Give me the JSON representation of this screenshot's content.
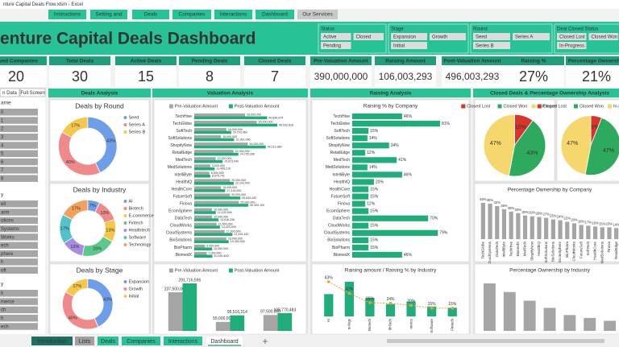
{
  "window_title": "nture Capital Deals Flow.xlsm - Excel",
  "nav": [
    "Instructions",
    "Setting and",
    "Deals",
    "Companies",
    "Interactions",
    "Dashboard",
    "Our Services"
  ],
  "title": "enture Capital Deals Dashboard",
  "slicers": [
    {
      "title": "Status",
      "items": [
        "Active",
        "Closed",
        "Pending"
      ]
    },
    {
      "title": "Stage",
      "items": [
        "Expansion",
        "Growth",
        "Initial"
      ]
    },
    {
      "title": "Round",
      "items": [
        "Seed",
        "Series A",
        "Series B"
      ]
    },
    {
      "title": "Deal Closed Status",
      "items": [
        "Closed Lost",
        "Closed Won",
        "In-Progress"
      ]
    }
  ],
  "kpis": [
    {
      "label": "olved Companies",
      "value": "20",
      "color": "#595959"
    },
    {
      "label": "Total Deals",
      "value": "30",
      "color": "#595959"
    },
    {
      "label": "Active Deals",
      "value": "15",
      "color": "#2ea36b"
    },
    {
      "label": "Pending Deals",
      "value": "8",
      "color": "#c9a227"
    },
    {
      "label": "Closed Deals",
      "value": "7",
      "color": "#c0392b"
    },
    {
      "label": "Pre-Valuation Amount",
      "value": "390,000,000",
      "color": "#595959"
    },
    {
      "label": "Raising Amount",
      "value": "106,003,293",
      "color": "#595959"
    },
    {
      "label": "Post-Valuation Amount",
      "value": "496,003,293",
      "color": "#595959"
    },
    {
      "label": "Raising %",
      "value": "27%",
      "color": "#595959"
    },
    {
      "label": "Percentage Ownership",
      "value": "21%",
      "color": "#595959"
    }
  ],
  "left_panel": {
    "buttons": [
      "n Data",
      "Full Screen"
    ],
    "slicers": [
      {
        "title": "ame",
        "items": [
          "0",
          "1",
          "2",
          "3",
          "4",
          "5",
          "6",
          "7",
          "8"
        ]
      },
      {
        "title": "y",
        "items": [
          "ell",
          "arm",
          "utions",
          "Systems",
          "Works",
          "ech",
          "phere",
          "h",
          "oft"
        ]
      },
      {
        "title": "y",
        "items": [
          "h",
          "merce",
          "ch",
          "h",
          "ech"
        ]
      }
    ]
  },
  "panels": [
    "Deals Analysis",
    "Valuation Analysis",
    "Raising Analysis",
    "Closed Deals & Percentage Ownership Analysis"
  ],
  "sheet_tabs": [
    "Introduction",
    "Lists",
    "Deals",
    "Companies",
    "Interactions",
    "Dashboard"
  ],
  "chart_data": [
    {
      "type": "donut",
      "title": "Deals by Round",
      "legend": "right",
      "categories": [
        "Seed",
        "Series A",
        "Series B"
      ],
      "values": [
        43,
        40,
        17
      ],
      "value_labels": [
        "43%",
        "40%",
        "17%"
      ],
      "colors": [
        "#6f9ee8",
        "#f08a8a",
        "#f5c84c"
      ]
    },
    {
      "type": "donut",
      "title": "Deals by Industry",
      "legend": "right",
      "categories": [
        "AI",
        "Biotech",
        "E-commerce",
        "Fintech",
        "Healthtech",
        "Software",
        "Technology"
      ],
      "values": [
        7,
        13,
        13,
        20,
        13,
        17,
        17
      ],
      "value_labels": [
        "7%",
        "13%",
        "13%",
        "20%",
        "13%",
        "17%",
        "17%"
      ],
      "colors": [
        "#6f9ee8",
        "#f08a8a",
        "#f5c84c",
        "#5cc98a",
        "#a98be0",
        "#4fc3c8",
        "#f5a05a"
      ]
    },
    {
      "type": "donut",
      "title": "Deals by Stage",
      "legend": "right",
      "categories": [
        "Expansion",
        "Growth",
        "Initial"
      ],
      "values": [
        43,
        40,
        17
      ],
      "value_labels": [
        "43%",
        "40%",
        "17%"
      ],
      "colors": [
        "#6f9ee8",
        "#f08a8a",
        "#f5c84c"
      ]
    },
    {
      "type": "hbar",
      "legend": "top",
      "categories": [
        "TechHive",
        "TechGlobe",
        "SoftTech",
        "SoftSolutions",
        "ShopifyNow",
        "RetailEdge",
        "MedTech",
        "MedSolutions",
        "IntelliByte",
        "HealthIQ",
        "HealthCore",
        "FutureSoft",
        "Finova",
        "EcomSphere",
        "DataTech",
        "CloudWorks",
        "CloudSystems",
        "BioSolutions",
        "BioPharm",
        "BiomedX"
      ],
      "series": [
        {
          "name": "Pre-Valuation Amount",
          "color": "#a5a5a5",
          "values": [
            28500000,
            35000000,
            18000000,
            15000000,
            30000000,
            22000000,
            12000000,
            9000000,
            8500000,
            20000000,
            15000000,
            20000000,
            25000000,
            10000000,
            10000000,
            12500000,
            17000000,
            18000000,
            6000000,
            7000000
          ],
          "value_labels": [
            "28,500,000",
            "35,000,000",
            "18,000,000",
            "15,000,000",
            "30,000,000",
            "22,000,000",
            "12,000,000",
            "9,000,000",
            "8,500,000",
            "20,000,000",
            "15,000,000",
            "20,000,000",
            "25,000,000",
            "10,000,000",
            "10,000,000",
            "12,500,000",
            "17,000,000",
            "18,000,000",
            "6,000,000",
            "7,000,000"
          ]
        },
        {
          "name": "Post-Valuation Amount",
          "color": "#1fae7a",
          "values": [
            40846874,
            46532818,
            20703469,
            22361066,
            40113380,
            24735398,
            15873040,
            11455210,
            8975741,
            22143000,
            17315000,
            25834200,
            30309100,
            12100500,
            13616336,
            14420000,
            21416140,
            19300000,
            10050000,
            10190400
          ],
          "value_labels": [
            "40,846,874",
            "46,532,818",
            "20,703,469",
            "22,361,066",
            "40,113,380",
            "24,735,398",
            "15,873,040",
            "11,455,210",
            "8,975,741",
            "22,143,000",
            "17,315,000",
            "25,834,200",
            "30,309,100",
            "12,100,500",
            "13,616,336",
            "14,420,000",
            "21,416,140",
            "19,300,000",
            "10,050,000",
            "10,190,400"
          ]
        }
      ]
    },
    {
      "type": "hbar",
      "title": "Raising % by Company",
      "categories": [
        "TechHive",
        "TechGlobe",
        "SoftTech",
        "SoftSolutions",
        "ShopifyNow",
        "RetailEdge",
        "MedTech",
        "MedSolutions",
        "IntelliByte",
        "HealthIQ",
        "HealthCore",
        "FutureSoft",
        "Finova",
        "EcomSphere",
        "DataTech",
        "CloudWorks",
        "CloudSystems",
        "BioSolutions",
        "BioPharm",
        "BiomedX"
      ],
      "series": [
        {
          "name": "Raising %",
          "color": "#1fae7a",
          "values": [
            46,
            81,
            15,
            14,
            34,
            12,
            41,
            14,
            46,
            20,
            15,
            15,
            12,
            15,
            70,
            15,
            79,
            15,
            15,
            46
          ],
          "value_labels": [
            "46%",
            "81%",
            "15%",
            "14%",
            "34%",
            "12%",
            "41%",
            "14%",
            "46%",
            "20%",
            "15%",
            "15%",
            "12%",
            "15%",
            "70%",
            "15%",
            "79%",
            "15%",
            "15%",
            "46%"
          ]
        }
      ]
    },
    {
      "type": "vbar",
      "title": "Percentage Ownership by Company",
      "categories": [
        "TechGlobe",
        "CloudSystems",
        "DataTech",
        "IntelliByte",
        "TechHive",
        "BiomedX",
        "MedTech",
        "ShopifyNow",
        "HealthIQ",
        "SoftSolutions",
        "BioSolutions",
        "EcomSphere",
        "BioPharm",
        "CloudWorks",
        "FutureSoft",
        "SoftTech",
        "HealthCore",
        "MedSolutions",
        "Finova",
        "RetailEdge"
      ],
      "series": [
        {
          "name": "Percentage Ownership",
          "color": "#a5a5a5",
          "values": [
            46,
            45,
            42,
            38,
            35,
            33,
            30,
            29,
            28,
            27,
            25,
            24,
            22,
            20,
            18,
            17,
            16,
            15,
            15,
            14
          ],
          "value_labels": [
            "46%",
            "45%",
            "42%",
            "38%",
            "35%",
            "33%",
            "30%",
            "29%",
            "28%",
            "27%",
            "25%",
            "24%",
            "22%",
            "20%",
            "18%",
            "17%",
            "16%",
            "15%",
            "15%",
            "14%"
          ]
        }
      ]
    },
    {
      "type": "vbar",
      "legend": "top",
      "categories": [
        null,
        null,
        null
      ],
      "series": [
        {
          "name": "Pre-Valuation Amount",
          "color": "#a5a5a5",
          "values": [
            237500000,
            55000000,
            97500000
          ],
          "value_labels": [
            "237,500,000",
            "55,000,000",
            "97,500,000"
          ]
        },
        {
          "name": "Post-Valuation Amount",
          "color": "#1fae7a",
          "values": [
            291716596,
            95516214,
            108770483
          ],
          "value_labels": [
            "291,716,596",
            "95,516,214",
            "108,770,483"
          ]
        }
      ]
    },
    {
      "type": "combo",
      "title": "Raising amount / Raising % by Industry",
      "categories": [
        "AI",
        "nology",
        "Biotech",
        "lthTech",
        "merce",
        "Software",
        "Fintech"
      ],
      "series": [
        {
          "name": "Raising amount",
          "color": "#1fae7a",
          "values": [
            18000000,
            28000000,
            15000000,
            10000000,
            12000000,
            8000000,
            7000000
          ]
        },
        {
          "name": "Raising %",
          "color": "#e8a33a",
          "axis": "y2",
          "values": [
            63,
            42,
            25,
            24,
            20,
            15,
            15
          ],
          "value_labels": [
            "63%",
            "42%",
            "25%",
            "24%",
            "20%",
            "15%",
            "15%"
          ]
        }
      ]
    },
    {
      "type": "vbar",
      "title": "Percentage Ownership by Industry",
      "categories": [
        null,
        null,
        null,
        null,
        null,
        null,
        null
      ],
      "series": [
        {
          "name": "Percentage Ownership",
          "color": "#a5a5a5",
          "values": [
            33,
            27,
            21,
            16,
            11,
            9,
            7
          ]
        }
      ]
    },
    {
      "type": "pie",
      "legend": "top",
      "categories": [
        "Closed Lost",
        "Closed Won",
        "In-Progress"
      ],
      "values": [
        10,
        43,
        47
      ],
      "value_labels": [
        "10%",
        "43%",
        "47%"
      ],
      "colors": [
        "#d9342b",
        "#2eaa5e",
        "#f5d76e"
      ]
    },
    {
      "type": "pie",
      "legend": "top",
      "categories": [
        "Closed Lost",
        "Closed Won",
        "In-Progress"
      ],
      "values": [
        6,
        47,
        47
      ],
      "value_labels": [
        "6%",
        "47%",
        "47%"
      ],
      "colors": [
        "#d9342b",
        "#2eaa5e",
        "#f5d76e"
      ]
    }
  ]
}
